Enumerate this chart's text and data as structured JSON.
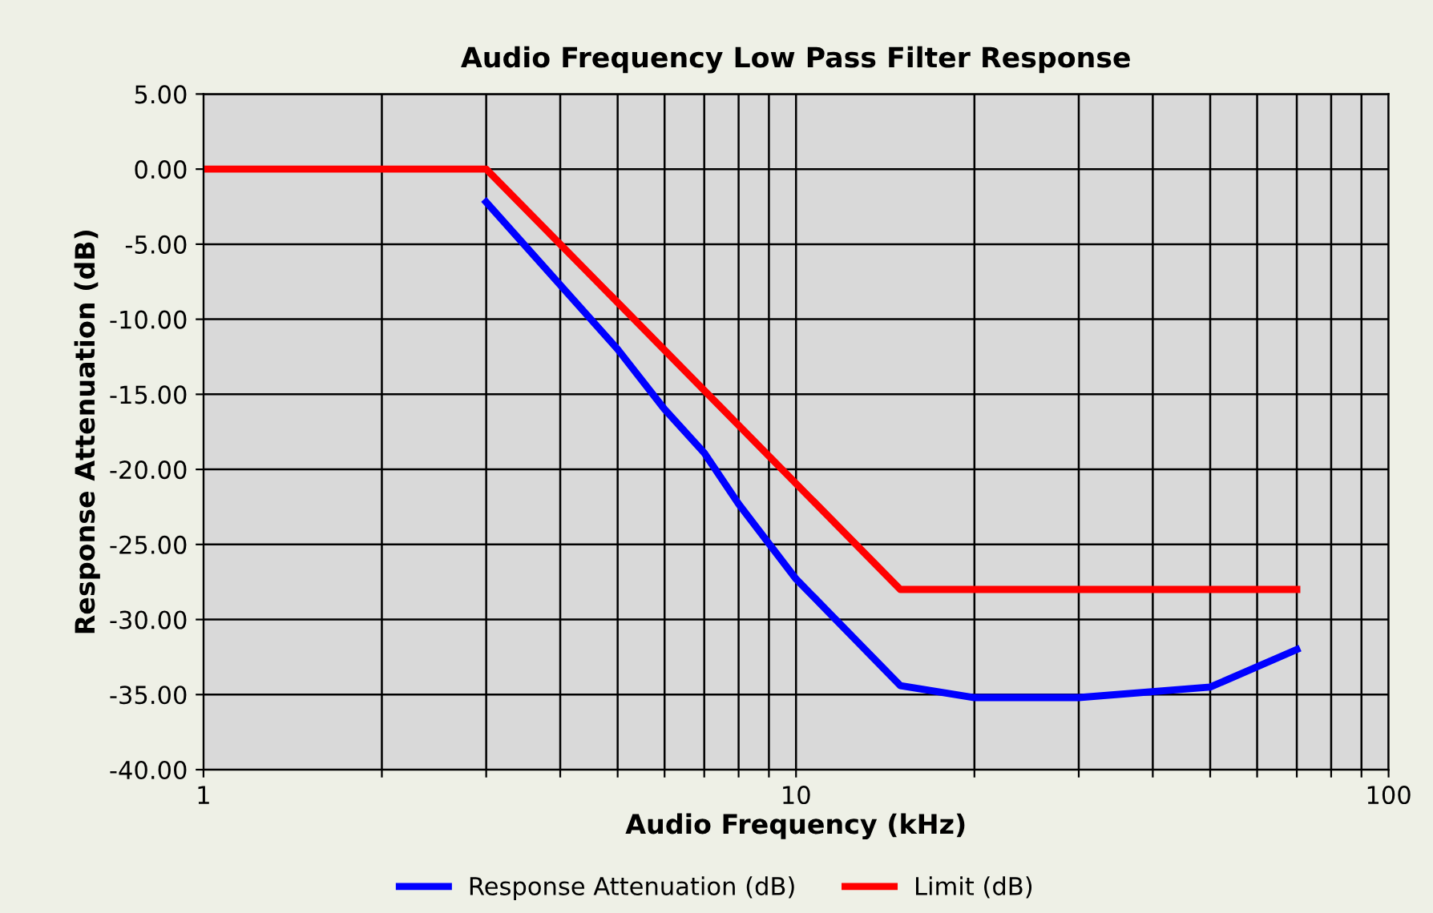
{
  "chart_data": {
    "type": "line",
    "title": "Audio Frequency Low Pass Filter Response",
    "xlabel": "Audio Frequency (kHz)",
    "ylabel": "Response Attenuation (dB)",
    "log": "x",
    "xlim": [
      1,
      100
    ],
    "xticks": [
      1,
      {
        "value": 2,
        "label": null
      },
      {
        "value": 3,
        "label": null
      },
      {
        "value": 4,
        "label": null
      },
      {
        "value": 5,
        "label": null
      },
      {
        "value": 6,
        "label": null
      },
      {
        "value": 7,
        "label": null
      },
      {
        "value": 8,
        "label": null
      },
      {
        "value": 9,
        "label": null
      },
      10,
      {
        "value": 20,
        "label": null
      },
      {
        "value": 30,
        "label": null
      },
      {
        "value": 40,
        "label": null
      },
      {
        "value": 50,
        "label": null
      },
      {
        "value": 60,
        "label": null
      },
      {
        "value": 70,
        "label": null
      },
      {
        "value": 80,
        "label": null
      },
      {
        "value": 90,
        "label": null
      },
      100
    ],
    "ylim": [
      -40,
      5
    ],
    "yticks": [
      {
        "value": 5,
        "label": "5.00"
      },
      {
        "value": 0,
        "label": "0.00"
      },
      {
        "value": -5,
        "label": "-5.00"
      },
      {
        "value": -10,
        "label": "-10.00"
      },
      {
        "value": -15,
        "label": "-15.00"
      },
      {
        "value": -20,
        "label": "-20.00"
      },
      {
        "value": -25,
        "label": "-25.00"
      },
      {
        "value": -30,
        "label": "-30.00"
      },
      {
        "value": -35,
        "label": "-35.00"
      },
      {
        "value": -40,
        "label": "-40.00"
      }
    ],
    "grid": true,
    "legend": "bottom",
    "marker": "none",
    "line_style": "solid",
    "series": [
      {
        "name": "Response Attenuation (dB)",
        "color": "#0000ff",
        "x": [
          3,
          5,
          6,
          7,
          8,
          10,
          15,
          20,
          30,
          50,
          70
        ],
        "values": [
          -2.2,
          -12,
          -16,
          -18.9,
          -22.3,
          -27.3,
          -34.4,
          -35.2,
          -35.2,
          -34.5,
          -32
        ]
      },
      {
        "name": "Limit (dB)",
        "color": "#ff0000",
        "x": [
          1,
          3,
          15,
          70
        ],
        "values": [
          0,
          0,
          -28,
          -28
        ]
      }
    ]
  }
}
